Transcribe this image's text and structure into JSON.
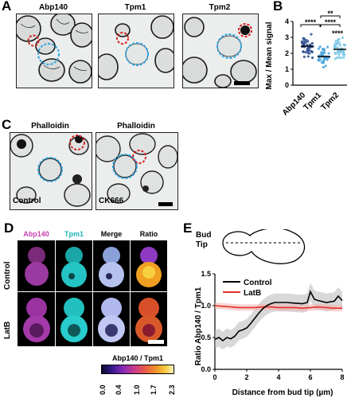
{
  "panels": {
    "A": {
      "label": "A",
      "titles": [
        "Abp140",
        "Tpm1",
        "Tpm2"
      ]
    },
    "B": {
      "label": "B",
      "ylabel": "Max / Mean signal",
      "categories": [
        "Abp140",
        "Tpm1",
        "Tpm2"
      ],
      "significance": [
        "****",
        "****",
        "**",
        "****"
      ]
    },
    "C": {
      "label": "C",
      "titles": [
        "Phalloidin",
        "Phalloidin"
      ],
      "conditions": [
        "Control",
        "CK666"
      ]
    },
    "D": {
      "label": "D",
      "channels": [
        "Abp140",
        "Tpm1",
        "Merge",
        "Ratio"
      ],
      "rows": [
        "Control",
        "LatB"
      ],
      "colorbar": {
        "title": "Abp140 / Tpm1",
        "ticks": [
          "0.0",
          "0.4",
          "1.0",
          "1.7",
          "2.3"
        ]
      }
    },
    "E": {
      "label": "E",
      "schematic": [
        "Bud",
        "Tip"
      ]
    }
  },
  "chart_data": [
    {
      "type": "scatter",
      "panel": "B",
      "ylabel": "Max / Mean signal",
      "categories": [
        "Abp140",
        "Tpm1",
        "Tpm2"
      ],
      "ylim": [
        0,
        4
      ],
      "yticks": [
        0,
        1,
        2,
        3,
        4
      ],
      "means": [
        2.45,
        1.8,
        2.25
      ],
      "colors": [
        "#2b4a8f",
        "#4aa3d8",
        "#78c6e6"
      ]
    },
    {
      "type": "line",
      "panel": "E",
      "xlabel": "Distance from bud tip (µm)",
      "ylabel": "Ratio Abp140 / Tpm1",
      "xlim": [
        0,
        8
      ],
      "ylim": [
        0,
        1.5
      ],
      "xticks": [
        0,
        2,
        4,
        6,
        8
      ],
      "yticks": [
        0.0,
        0.5,
        1.0,
        1.5
      ],
      "series": [
        {
          "name": "Control",
          "color": "#000000",
          "x": [
            0,
            0.25,
            0.5,
            0.75,
            1.0,
            1.25,
            1.5,
            1.75,
            2.0,
            2.25,
            2.5,
            2.75,
            3.0,
            3.25,
            3.5,
            3.75,
            4.0,
            4.5,
            5.0,
            5.5,
            5.8,
            6.0,
            6.25,
            6.5,
            7.0,
            7.5,
            7.75,
            8.0
          ],
          "y": [
            0.47,
            0.5,
            0.45,
            0.5,
            0.48,
            0.52,
            0.6,
            0.62,
            0.65,
            0.72,
            0.8,
            0.88,
            0.95,
            1.0,
            1.03,
            1.05,
            1.05,
            1.05,
            1.04,
            1.03,
            1.05,
            1.22,
            1.1,
            1.08,
            1.05,
            1.07,
            1.15,
            1.08
          ]
        },
        {
          "name": "LatB",
          "color": "#e0302a",
          "x": [
            0,
            0.5,
            1.0,
            1.5,
            2.0,
            2.5,
            3.0,
            3.5,
            4.0,
            4.5,
            5.0,
            5.5,
            6.0,
            6.5,
            7.0,
            7.5,
            8.0
          ],
          "y": [
            1.0,
            0.99,
            0.98,
            0.97,
            0.97,
            0.97,
            0.98,
            0.98,
            0.97,
            0.97,
            0.97,
            0.96,
            0.97,
            0.98,
            0.97,
            0.96,
            0.96
          ]
        }
      ]
    }
  ]
}
